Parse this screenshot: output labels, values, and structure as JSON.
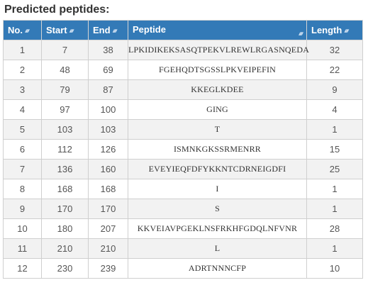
{
  "title": "Predicted peptides:",
  "colors": {
    "header_bg": "#337ab7",
    "header_text": "#ffffff",
    "row_stripe": "#f2f2f2"
  },
  "icons": {
    "sort": "sort-up-down-icon"
  },
  "columns": [
    {
      "key": "no",
      "label": "No."
    },
    {
      "key": "start",
      "label": "Start"
    },
    {
      "key": "end",
      "label": "End"
    },
    {
      "key": "peptide",
      "label": "Peptide"
    },
    {
      "key": "length",
      "label": "Length"
    }
  ],
  "rows": [
    {
      "no": "1",
      "start": "7",
      "end": "38",
      "peptide": "LPKIDIKEKSASQTPEKVLREWLRGASNQEDA",
      "length": "32"
    },
    {
      "no": "2",
      "start": "48",
      "end": "69",
      "peptide": "FGEHQDTSGSSLPKVEIPEFIN",
      "length": "22"
    },
    {
      "no": "3",
      "start": "79",
      "end": "87",
      "peptide": "KKEGLKDEE",
      "length": "9"
    },
    {
      "no": "4",
      "start": "97",
      "end": "100",
      "peptide": "GING",
      "length": "4"
    },
    {
      "no": "5",
      "start": "103",
      "end": "103",
      "peptide": "T",
      "length": "1"
    },
    {
      "no": "6",
      "start": "112",
      "end": "126",
      "peptide": "ISMNKGKSSRMENRR",
      "length": "15"
    },
    {
      "no": "7",
      "start": "136",
      "end": "160",
      "peptide": "EVEYIEQFDFYKKNTCDRNEIGDFI",
      "length": "25"
    },
    {
      "no": "8",
      "start": "168",
      "end": "168",
      "peptide": "I",
      "length": "1"
    },
    {
      "no": "9",
      "start": "170",
      "end": "170",
      "peptide": "S",
      "length": "1"
    },
    {
      "no": "10",
      "start": "180",
      "end": "207",
      "peptide": "KKVEIAVPGEKLNSFRKHFGDQLNFVNR",
      "length": "28"
    },
    {
      "no": "11",
      "start": "210",
      "end": "210",
      "peptide": "L",
      "length": "1"
    },
    {
      "no": "12",
      "start": "230",
      "end": "239",
      "peptide": "ADRTNNNCFP",
      "length": "10"
    }
  ]
}
